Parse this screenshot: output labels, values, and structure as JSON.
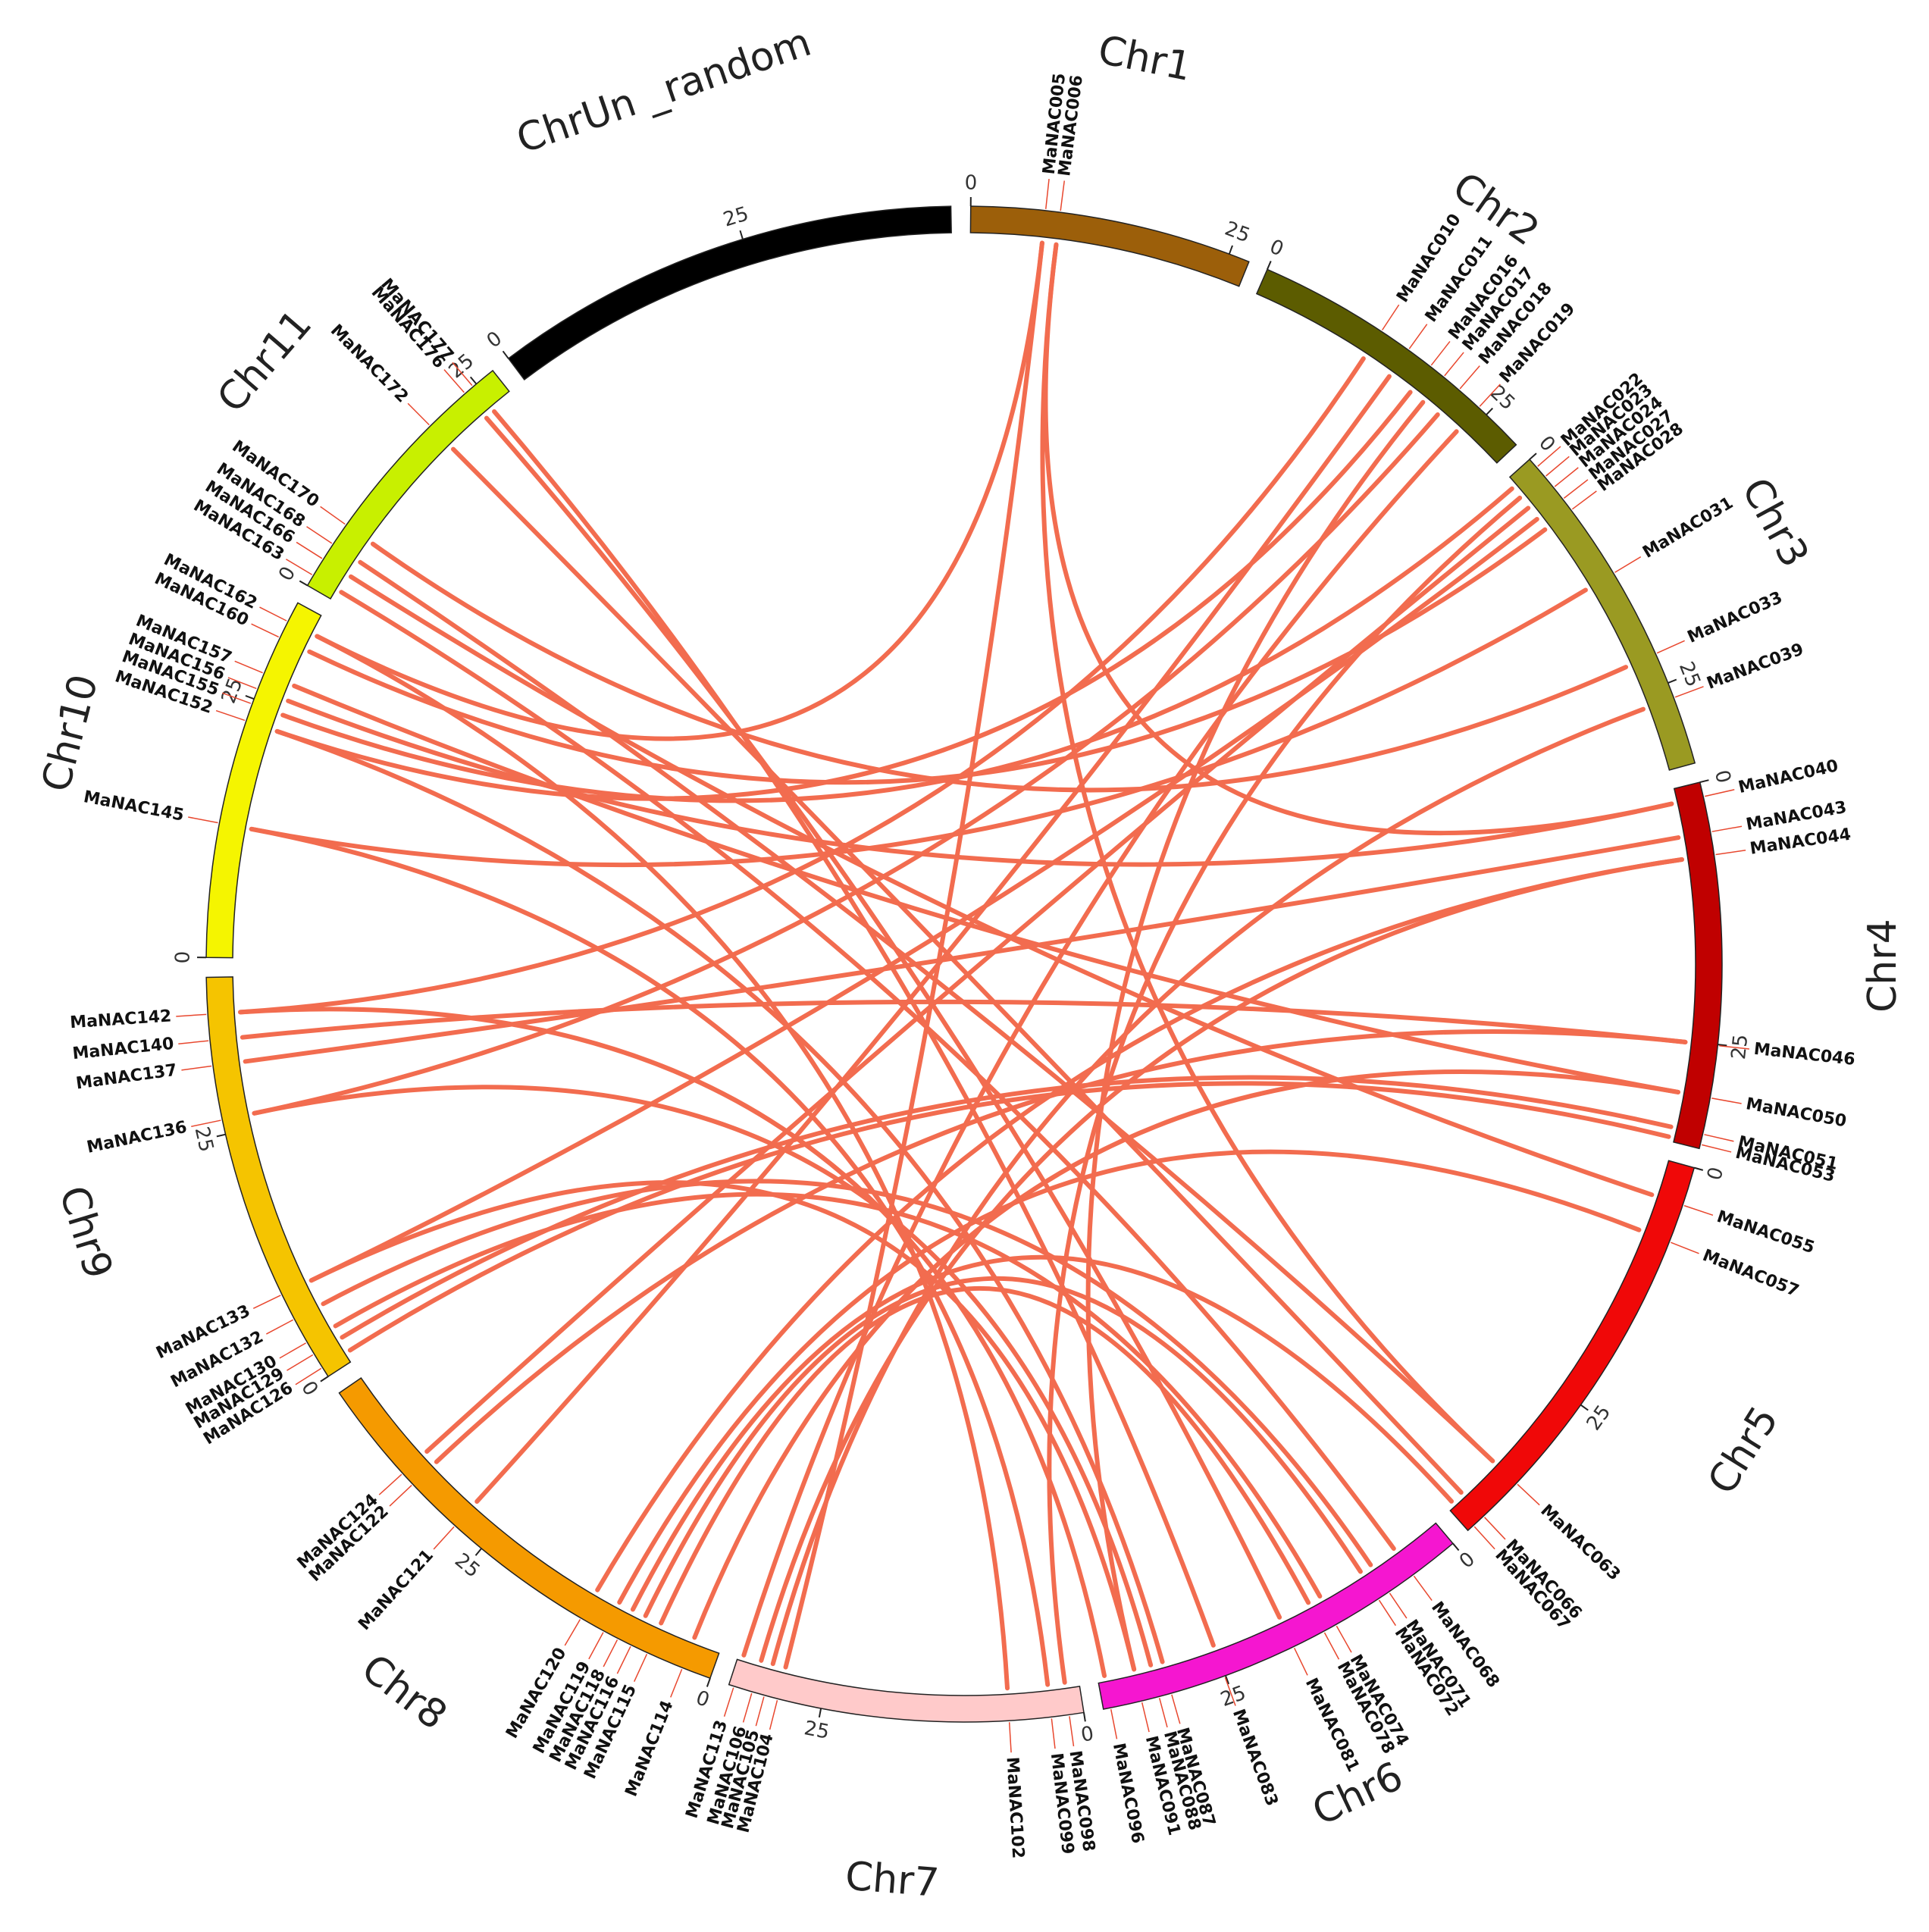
{
  "chart_data": {
    "type": "circos",
    "link_color": "#f26c4f",
    "chromosomes": [
      {
        "name": "Chr1",
        "color": "#9c5f0a",
        "length": 27,
        "ticks": [
          0,
          25
        ]
      },
      {
        "name": "Chr2",
        "color": "#5c5c00",
        "length": 29,
        "ticks": [
          0,
          25
        ]
      },
      {
        "name": "Chr3",
        "color": "#9a9a22",
        "length": 33,
        "ticks": [
          0,
          25
        ]
      },
      {
        "name": "Chr4",
        "color": "#c00000",
        "length": 35,
        "ticks": [
          0,
          25
        ]
      },
      {
        "name": "Chr5",
        "color": "#f00808",
        "length": 41,
        "ticks": [
          0,
          25
        ]
      },
      {
        "name": "Chr6",
        "color": "#f516d0",
        "length": 37,
        "ticks": [
          0,
          25
        ]
      },
      {
        "name": "Chr7",
        "color": "#ffcaca",
        "length": 34,
        "ticks": [
          0,
          25
        ]
      },
      {
        "name": "Chr8",
        "color": "#f59a00",
        "length": 45,
        "ticks": [
          0,
          25
        ]
      },
      {
        "name": "Chr9",
        "color": "#f5c400",
        "length": 40,
        "ticks": [
          0,
          25
        ]
      },
      {
        "name": "Chr10",
        "color": "#f5f500",
        "length": 35,
        "ticks": [
          0,
          25
        ]
      },
      {
        "name": "Chr11",
        "color": "#c8f000",
        "length": 27,
        "ticks": [
          0,
          25
        ]
      },
      {
        "name": "ChrUn _random",
        "color": "#000000",
        "length": 45,
        "ticks": [
          0,
          25
        ]
      }
    ],
    "genes": [
      {
        "name": "MaNAC005",
        "chromosome": "Chr1",
        "position": 7.1
      },
      {
        "name": "MaNAC006",
        "chromosome": "Chr1",
        "position": 8.5
      },
      {
        "name": "MaNAC010",
        "chromosome": "Chr2",
        "position": 12.3
      },
      {
        "name": "MaNAC011",
        "chromosome": "Chr2",
        "position": 15.4
      },
      {
        "name": "MaNAC016",
        "chromosome": "Chr2",
        "position": 18
      },
      {
        "name": "MaNAC017",
        "chromosome": "Chr2",
        "position": 19.6
      },
      {
        "name": "MaNAC018",
        "chromosome": "Chr2",
        "position": 21.5
      },
      {
        "name": "MaNAC019",
        "chromosome": "Chr2",
        "position": 24
      },
      {
        "name": "MaNAC022",
        "chromosome": "Chr3",
        "position": 1
      },
      {
        "name": "MaNAC023",
        "chromosome": "Chr3",
        "position": 2.2
      },
      {
        "name": "MaNAC024",
        "chromosome": "Chr3",
        "position": 3.5
      },
      {
        "name": "MaNAC027",
        "chromosome": "Chr3",
        "position": 4.9
      },
      {
        "name": "MaNAC028",
        "chromosome": "Chr3",
        "position": 6.2
      },
      {
        "name": "MaNAC031",
        "chromosome": "Chr3",
        "position": 13.4
      },
      {
        "name": "MaNAC033",
        "chromosome": "Chr3",
        "position": 22
      },
      {
        "name": "MaNAC039",
        "chromosome": "Chr3",
        "position": 26.5
      },
      {
        "name": "MaNAC040",
        "chromosome": "Chr4",
        "position": 1.4
      },
      {
        "name": "MaNAC043",
        "chromosome": "Chr4",
        "position": 4.8
      },
      {
        "name": "MaNAC044",
        "chromosome": "Chr4",
        "position": 7
      },
      {
        "name": "MaNAC046",
        "chromosome": "Chr4",
        "position": 25.1
      },
      {
        "name": "MaNAC050",
        "chromosome": "Chr4",
        "position": 30.1
      },
      {
        "name": "MaNAC051",
        "chromosome": "Chr4",
        "position": 33.6
      },
      {
        "name": "MaNAC053",
        "chromosome": "Chr4",
        "position": 34.6
      },
      {
        "name": "MaNAC055",
        "chromosome": "Chr5",
        "position": 3.7
      },
      {
        "name": "MaNAC057",
        "chromosome": "Chr5",
        "position": 7.4
      },
      {
        "name": "MaNAC063",
        "chromosome": "Chr5",
        "position": 34.6
      },
      {
        "name": "MaNAC066",
        "chromosome": "Chr5",
        "position": 39
      },
      {
        "name": "MaNAC067",
        "chromosome": "Chr5",
        "position": 40.3
      },
      {
        "name": "MaNAC068",
        "chromosome": "Chr6",
        "position": 4.8
      },
      {
        "name": "MaNAC071",
        "chromosome": "Chr6",
        "position": 7.6
      },
      {
        "name": "MaNAC072",
        "chromosome": "Chr6",
        "position": 8.8
      },
      {
        "name": "MaNAC074",
        "chromosome": "Chr6",
        "position": 13.5
      },
      {
        "name": "MaNAC078",
        "chromosome": "Chr6",
        "position": 14.8
      },
      {
        "name": "MaNAC081",
        "chromosome": "Chr6",
        "position": 18
      },
      {
        "name": "MaNAC083",
        "chromosome": "Chr6",
        "position": 25.1
      },
      {
        "name": "MaNAC087",
        "chromosome": "Chr6",
        "position": 30.4
      },
      {
        "name": "MaNAC088",
        "chromosome": "Chr6",
        "position": 31.6
      },
      {
        "name": "MaNAC091",
        "chromosome": "Chr6",
        "position": 33.3
      },
      {
        "name": "MaNAC096",
        "chromosome": "Chr6",
        "position": 36.3
      },
      {
        "name": "MaNAC098",
        "chromosome": "Chr7",
        "position": 1.4
      },
      {
        "name": "MaNAC099",
        "chromosome": "Chr7",
        "position": 3.1
      },
      {
        "name": "MaNAC102",
        "chromosome": "Chr7",
        "position": 7.1
      },
      {
        "name": "MaNAC104",
        "chromosome": "Chr7",
        "position": 29.2
      },
      {
        "name": "MaNAC105",
        "chromosome": "Chr7",
        "position": 30.5
      },
      {
        "name": "MaNAC106",
        "chromosome": "Chr7",
        "position": 31.7
      },
      {
        "name": "MaNAC113",
        "chromosome": "Chr7",
        "position": 33.5
      },
      {
        "name": "MaNAC114",
        "chromosome": "Chr8",
        "position": 2.8
      },
      {
        "name": "MaNAC115",
        "chromosome": "Chr8",
        "position": 6.4
      },
      {
        "name": "MaNAC116",
        "chromosome": "Chr8",
        "position": 8.1
      },
      {
        "name": "MaNAC118",
        "chromosome": "Chr8",
        "position": 9.5
      },
      {
        "name": "MaNAC119",
        "chromosome": "Chr8",
        "position": 11
      },
      {
        "name": "MaNAC120",
        "chromosome": "Chr8",
        "position": 13.5
      },
      {
        "name": "MaNAC121",
        "chromosome": "Chr8",
        "position": 28.3
      },
      {
        "name": "MaNAC122",
        "chromosome": "Chr8",
        "position": 33.9
      },
      {
        "name": "MaNAC124",
        "chromosome": "Chr8",
        "position": 35.3
      },
      {
        "name": "MaNAC126",
        "chromosome": "Chr9",
        "position": 1
      },
      {
        "name": "MaNAC129",
        "chromosome": "Chr9",
        "position": 2.5
      },
      {
        "name": "MaNAC130",
        "chromosome": "Chr9",
        "position": 3.8
      },
      {
        "name": "MaNAC132",
        "chromosome": "Chr9",
        "position": 6.3
      },
      {
        "name": "MaNAC133",
        "chromosome": "Chr9",
        "position": 8.9
      },
      {
        "name": "MaNAC136",
        "chromosome": "Chr9",
        "position": 26.4
      },
      {
        "name": "MaNAC137",
        "chromosome": "Chr9",
        "position": 31.6
      },
      {
        "name": "MaNAC140",
        "chromosome": "Chr9",
        "position": 34
      },
      {
        "name": "MaNAC142",
        "chromosome": "Chr9",
        "position": 36.5
      },
      {
        "name": "MaNAC145",
        "chromosome": "Chr10",
        "position": 12.8
      },
      {
        "name": "MaNAC152",
        "chromosome": "Chr10",
        "position": 22.8
      },
      {
        "name": "MaNAC155",
        "chromosome": "Chr10",
        "position": 24.5
      },
      {
        "name": "MaNAC156",
        "chromosome": "Chr10",
        "position": 26
      },
      {
        "name": "MaNAC157",
        "chromosome": "Chr10",
        "position": 27.6
      },
      {
        "name": "MaNAC160",
        "chromosome": "Chr10",
        "position": 31.3
      },
      {
        "name": "MaNAC162",
        "chromosome": "Chr10",
        "position": 33
      },
      {
        "name": "MaNAC163",
        "chromosome": "Chr11",
        "position": 1.1
      },
      {
        "name": "MaNAC166",
        "chromosome": "Chr11",
        "position": 2.9
      },
      {
        "name": "MaNAC168",
        "chromosome": "Chr11",
        "position": 4.6
      },
      {
        "name": "MaNAC170",
        "chromosome": "Chr11",
        "position": 6.8
      },
      {
        "name": "MaNAC172",
        "chromosome": "Chr11",
        "position": 19.1
      },
      {
        "name": "MaNAC176",
        "chromosome": "Chr11",
        "position": 23.6
      },
      {
        "name": "MaNAC177",
        "chromosome": "Chr11",
        "position": 24.6
      }
    ],
    "links": [
      [
        "MaNAC005",
        "MaNAC104"
      ],
      [
        "MaNAC006",
        "MaNAC063"
      ],
      [
        "MaNAC005",
        "MaNAC162"
      ],
      [
        "MaNAC006",
        "MaNAC040"
      ],
      [
        "MaNAC010",
        "MaNAC142"
      ],
      [
        "MaNAC011",
        "MaNAC121"
      ],
      [
        "MaNAC016",
        "MaNAC152"
      ],
      [
        "MaNAC017",
        "MaNAC091"
      ],
      [
        "MaNAC018",
        "MaNAC136"
      ],
      [
        "MaNAC019",
        "MaNAC113"
      ],
      [
        "MaNAC022",
        "MaNAC155"
      ],
      [
        "MaNAC023",
        "MaNAC098"
      ],
      [
        "MaNAC024",
        "MaNAC124"
      ],
      [
        "MaNAC027",
        "MaNAC133"
      ],
      [
        "MaNAC028",
        "MaNAC160"
      ],
      [
        "MaNAC031",
        "MaNAC145"
      ],
      [
        "MaNAC033",
        "MaNAC170"
      ],
      [
        "MaNAC039",
        "MaNAC105"
      ],
      [
        "MaNAC040",
        "MaNAC156"
      ],
      [
        "MaNAC043",
        "MaNAC137"
      ],
      [
        "MaNAC044",
        "MaNAC120"
      ],
      [
        "MaNAC046",
        "MaNAC140"
      ],
      [
        "MaNAC050",
        "MaNAC157"
      ],
      [
        "MaNAC051",
        "MaNAC129"
      ],
      [
        "MaNAC053",
        "MaNAC126"
      ],
      [
        "MaNAC055",
        "MaNAC166"
      ],
      [
        "MaNAC057",
        "MaNAC119"
      ],
      [
        "MaNAC063",
        "MaNAC168"
      ],
      [
        "MaNAC066",
        "MaNAC172"
      ],
      [
        "MaNAC067",
        "MaNAC118"
      ],
      [
        "MaNAC068",
        "MaNAC163"
      ],
      [
        "MaNAC071",
        "MaNAC132"
      ],
      [
        "MaNAC072",
        "MaNAC116"
      ],
      [
        "MaNAC074",
        "MaNAC130"
      ],
      [
        "MaNAC078",
        "MaNAC115"
      ],
      [
        "MaNAC081",
        "MaNAC176"
      ],
      [
        "MaNAC083",
        "MaNAC177"
      ],
      [
        "MaNAC087",
        "MaNAC152"
      ],
      [
        "MaNAC088",
        "MaNAC136"
      ],
      [
        "MaNAC091",
        "MaNAC133"
      ],
      [
        "MaNAC096",
        "MaNAC142"
      ],
      [
        "MaNAC099",
        "MaNAC145"
      ],
      [
        "MaNAC102",
        "MaNAC162"
      ],
      [
        "MaNAC106",
        "MaNAC044"
      ],
      [
        "MaNAC114",
        "MaNAC050"
      ],
      [
        "MaNAC122",
        "MaNAC046"
      ]
    ]
  }
}
